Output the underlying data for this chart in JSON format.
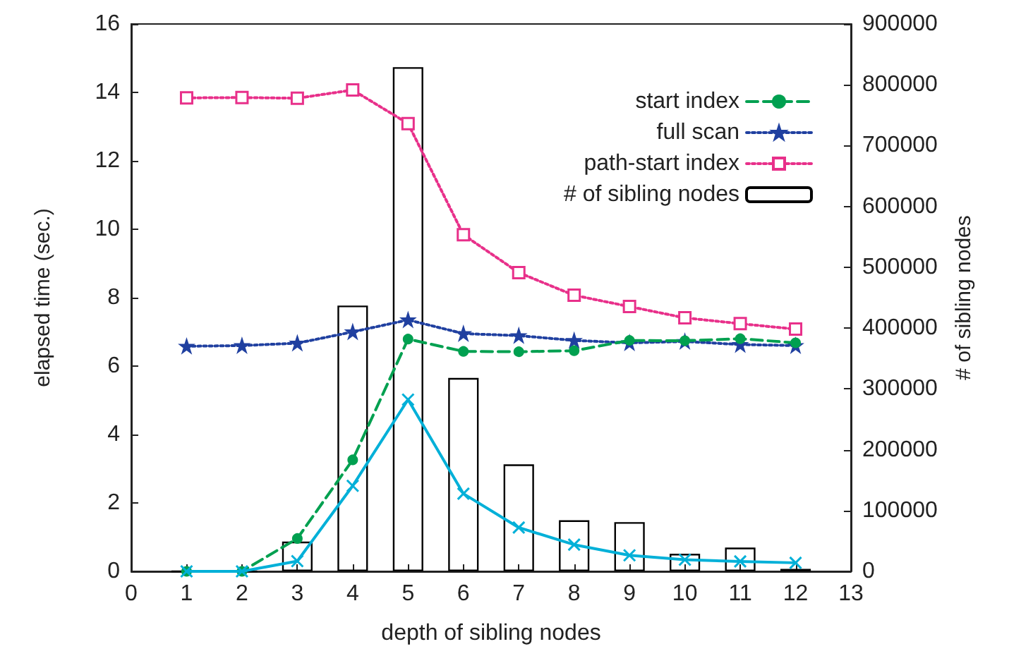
{
  "chart_data": {
    "type": "line",
    "xlabel": "depth of sibling nodes",
    "ylabel": "elapsed time (sec.)",
    "y2label": "# of sibling nodes",
    "x": [
      1,
      2,
      3,
      4,
      5,
      6,
      7,
      8,
      9,
      10,
      11,
      12
    ],
    "xlim": [
      0,
      13
    ],
    "xticks": [
      0,
      1,
      2,
      3,
      4,
      5,
      6,
      7,
      8,
      9,
      10,
      11,
      12,
      13
    ],
    "ylim": [
      0,
      16
    ],
    "yticks": [
      0,
      2,
      4,
      6,
      8,
      10,
      12,
      14,
      16
    ],
    "y2lim": [
      0,
      900000
    ],
    "y2ticks": [
      0,
      100000,
      200000,
      300000,
      400000,
      500000,
      600000,
      700000,
      800000,
      900000
    ],
    "grid": false,
    "legend": "top right",
    "series": [
      {
        "color": "#00b0d8",
        "marker": "cross",
        "line_style": "solid",
        "values": [
          0,
          0,
          0.3,
          2.5,
          5.02,
          2.27,
          1.28,
          0.78,
          0.47,
          0.34,
          0.29,
          0.25
        ]
      },
      {
        "name": "start index",
        "color": "#00a050",
        "marker": "circle",
        "line_style": "dashed",
        "values": [
          0,
          0,
          0.96,
          3.26,
          6.79,
          6.43,
          6.42,
          6.45,
          6.75,
          6.74,
          6.8,
          6.68
        ]
      },
      {
        "name": "full scan",
        "color": "#2040a0",
        "marker": "star",
        "line_style": "dotted",
        "values": [
          6.58,
          6.6,
          6.67,
          7.0,
          7.35,
          6.95,
          6.89,
          6.75,
          6.68,
          6.72,
          6.63,
          6.6
        ]
      },
      {
        "name": "path-start index",
        "color": "#e8308a",
        "marker": "square",
        "line_style": "dotted",
        "values": [
          13.84,
          13.85,
          13.83,
          14.07,
          13.09,
          9.84,
          8.73,
          8.07,
          7.74,
          7.41,
          7.24,
          7.08
        ]
      },
      {
        "name": "# of sibling nodes",
        "type": "bar",
        "axis": "y2",
        "color": "#000000",
        "values": [
          0,
          0,
          49000,
          437000,
          829000,
          318000,
          176000,
          84000,
          81000,
          29000,
          39000,
          4000
        ]
      }
    ]
  }
}
